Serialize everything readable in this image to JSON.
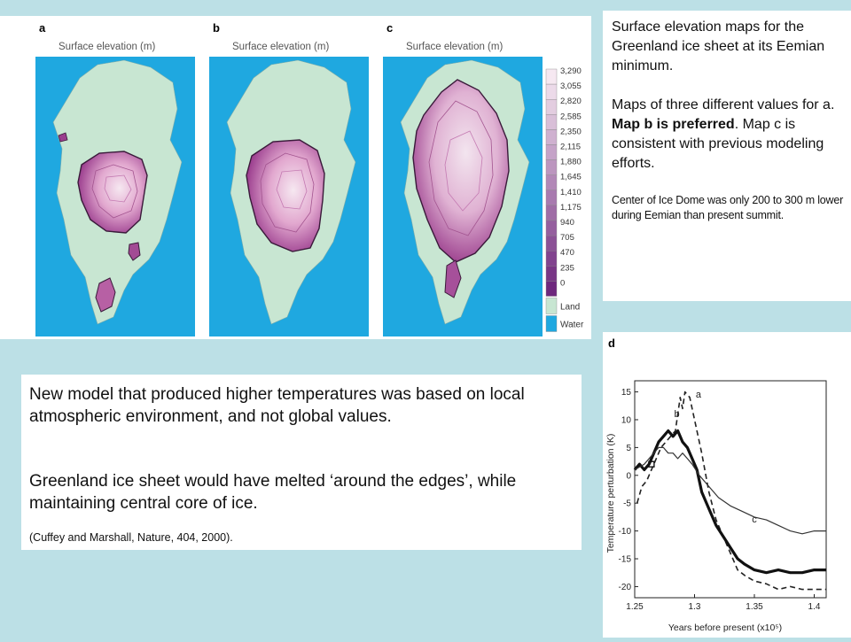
{
  "maps": {
    "panels": [
      {
        "letter": "a",
        "title": "Surface elevation (m)"
      },
      {
        "letter": "b",
        "title": "Surface elevation (m)"
      },
      {
        "letter": "c",
        "title": "Surface elevation (m)"
      }
    ],
    "legend": {
      "values": [
        "3,290",
        "3,055",
        "2,820",
        "2,585",
        "2,350",
        "2,115",
        "1,880",
        "1,645",
        "1,410",
        "1,175",
        "940",
        "705",
        "470",
        "235",
        "0"
      ],
      "land_label": "Land",
      "water_label": "Water"
    },
    "colors": {
      "water": "#1fa8e0",
      "land": "#c8e6d2",
      "ice_low": "#7b2f86",
      "ice_high": "#f6e8f1"
    }
  },
  "caption": {
    "p1": "Surface elevation maps for the Greenland ice sheet at its Eemian minimum.",
    "p2_pre": "Maps of three different values for a.",
    "p2_bold": "Map b is preferred",
    "p2_post": ". Map c is consistent with previous modeling efforts.",
    "p3": "Center of Ice Dome was only 200 to 300 m lower during Eemian than present summit."
  },
  "body": {
    "p1": "New model that produced higher temperatures was based on local atmospheric environment, and not global values.",
    "p2": "Greenland ice sheet would have melted ‘around the edges’, while maintaining central core of ice.",
    "p3": "(Cuffey and Marshall, Nature, 404, 2000)."
  },
  "chart_data": {
    "type": "line",
    "panel_label": "d",
    "xlabel": "Years before present (x10⁵)",
    "ylabel": "Temperature perturbation (K)",
    "xlim": [
      1.25,
      1.41
    ],
    "ylim": [
      -22,
      17
    ],
    "xticks": [
      "1.25",
      "1.3",
      "1.35",
      "1.4"
    ],
    "yticks": [
      "15",
      "10",
      "5",
      "0",
      "-5",
      "-10",
      "-15",
      "-20"
    ],
    "series": [
      {
        "name": "a",
        "style": "dashed",
        "x": [
          1.252,
          1.256,
          1.26,
          1.264,
          1.268,
          1.272,
          1.276,
          1.28,
          1.284,
          1.288,
          1.29,
          1.292,
          1.296,
          1.3,
          1.306,
          1.312,
          1.318,
          1.324,
          1.33,
          1.336,
          1.342,
          1.35,
          1.36,
          1.37,
          1.38,
          1.39,
          1.4,
          1.41
        ],
        "y": [
          -5,
          -2,
          -1,
          1,
          3,
          5,
          6,
          7,
          8,
          14,
          12,
          15,
          14,
          10,
          4,
          -3,
          -8,
          -11,
          -14,
          -17,
          -18,
          -19,
          -19.5,
          -20.5,
          -20,
          -20.5,
          -20.5,
          -20.5
        ]
      },
      {
        "name": "b",
        "style": "thick",
        "x": [
          1.25,
          1.254,
          1.258,
          1.262,
          1.266,
          1.27,
          1.274,
          1.278,
          1.282,
          1.286,
          1.29,
          1.294,
          1.298,
          1.302,
          1.306,
          1.312,
          1.318,
          1.324,
          1.33,
          1.336,
          1.342,
          1.35,
          1.36,
          1.37,
          1.38,
          1.39,
          1.4,
          1.41
        ],
        "y": [
          1,
          2,
          1,
          2,
          4,
          6,
          7,
          8,
          7,
          8,
          6,
          5,
          3,
          1,
          -3,
          -6,
          -9,
          -11,
          -13,
          -15,
          -16,
          -17,
          -17.5,
          -17,
          -17.5,
          -17.5,
          -17,
          -17
        ]
      },
      {
        "name": "c",
        "style": "thin",
        "x": [
          1.25,
          1.254,
          1.258,
          1.262,
          1.266,
          1.27,
          1.274,
          1.278,
          1.282,
          1.286,
          1.29,
          1.294,
          1.298,
          1.304,
          1.312,
          1.32,
          1.33,
          1.34,
          1.35,
          1.36,
          1.37,
          1.38,
          1.39,
          1.4,
          1.41
        ],
        "y": [
          1,
          1.5,
          2,
          3,
          4,
          5,
          5,
          4,
          4,
          3,
          4,
          3,
          2,
          0,
          -2,
          -4,
          -5.5,
          -6.5,
          -7.5,
          -8,
          -9,
          -10,
          -10.5,
          -10,
          -10
        ]
      }
    ],
    "start_marker": {
      "x": 1.264,
      "y": 2
    }
  }
}
